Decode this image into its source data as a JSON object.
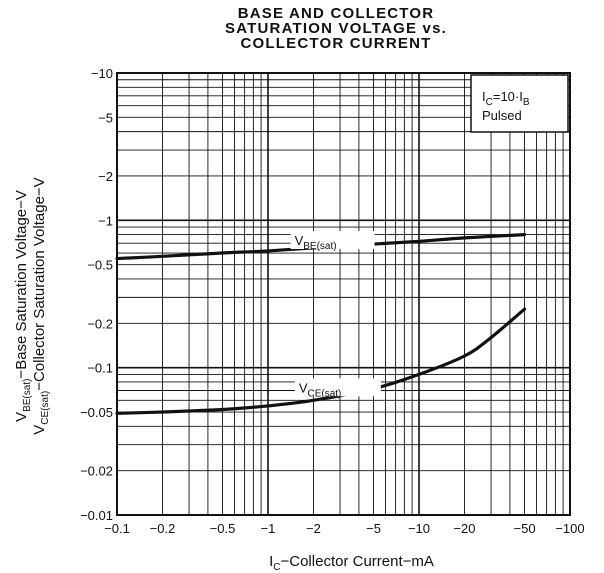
{
  "chart_data": {
    "type": "line",
    "title_lines": [
      "BASE AND COLLECTOR",
      "SATURATION VOLTAGE vs.",
      "COLLECTOR CURRENT"
    ],
    "x_scale": "log",
    "y_scale": "log",
    "xlim": [
      -0.1,
      -100
    ],
    "ylim": [
      -0.01,
      -10
    ],
    "x_ticks": [
      -0.1,
      -0.2,
      -0.5,
      -1,
      -2,
      -5,
      -10,
      -20,
      -50,
      -100
    ],
    "x_tick_labels": [
      "−0.1",
      "−0.2",
      "−0.5",
      "−1",
      "−2",
      "−5",
      "−10",
      "−20",
      "−50",
      "−100"
    ],
    "y_ticks": [
      -0.01,
      -0.02,
      -0.05,
      -0.1,
      -0.2,
      -0.5,
      -1,
      -2,
      -5,
      -10
    ],
    "y_tick_labels": [
      "−0.01",
      "−0.02",
      "−0.05",
      "−0.1",
      "−0.2",
      "−0.5",
      "−1",
      "−2",
      "−5",
      "−10"
    ],
    "xlabel": {
      "main": "I",
      "sub": "C",
      "rest": "−Collector Current−mA"
    },
    "ylabel_line1": {
      "main": "V",
      "sub": "BE(sat)",
      "rest": "−Base Saturation Voltage−V"
    },
    "ylabel_line2": {
      "main": "V",
      "sub": "CE(sat)",
      "rest": "−Collector Saturation Voltage−V"
    },
    "grid": true,
    "condition_box": {
      "line1_main": "I",
      "line1_sub": "C",
      "line1_mid": "=10·I",
      "line1_sub2": "B",
      "line2": "Pulsed"
    },
    "series": [
      {
        "label_main": "V",
        "label_sub": "BE(sat)",
        "x": [
          -0.1,
          -0.2,
          -0.5,
          -1,
          -2,
          -5,
          -10,
          -20,
          -50
        ],
        "y": [
          -0.55,
          -0.57,
          -0.6,
          -0.62,
          -0.65,
          -0.69,
          -0.72,
          -0.76,
          -0.8
        ]
      },
      {
        "label_main": "V",
        "label_sub": "CE(sat)",
        "x": [
          -0.1,
          -0.2,
          -0.5,
          -1,
          -2,
          -5,
          -10,
          -20,
          -30,
          -50
        ],
        "y": [
          -0.049,
          -0.05,
          -0.052,
          -0.055,
          -0.06,
          -0.072,
          -0.09,
          -0.12,
          -0.16,
          -0.25
        ]
      }
    ],
    "colors": {
      "line": "#111111",
      "grid": "#111111",
      "background": "#ffffff"
    }
  }
}
